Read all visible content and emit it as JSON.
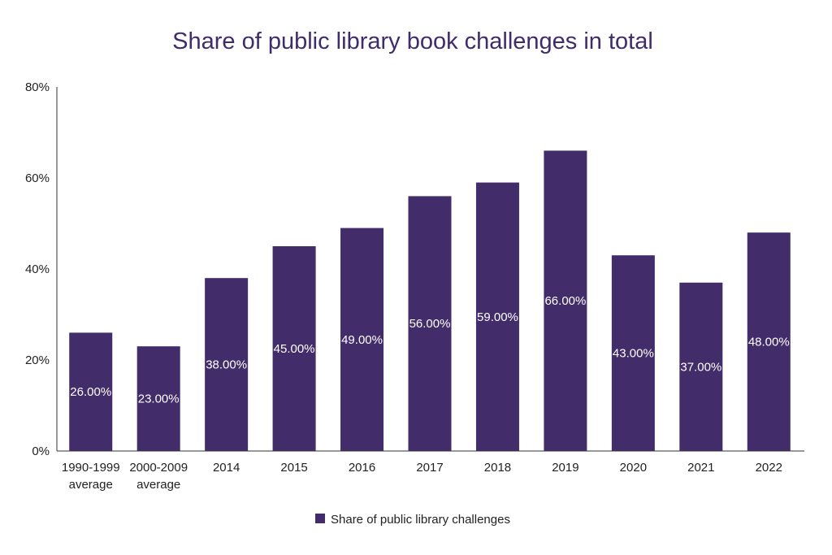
{
  "chart_data": {
    "type": "bar",
    "title": "Share of public library book challenges in total",
    "xlabel": "",
    "ylabel": "",
    "ylim": [
      0,
      80
    ],
    "yticks": [
      "0%",
      "20%",
      "40%",
      "60%",
      "80%"
    ],
    "ytick_values": [
      0,
      20,
      40,
      60,
      80
    ],
    "grid": false,
    "legend_position": "bottom",
    "categories": [
      [
        "1990-1999",
        "average"
      ],
      [
        "2000-2009",
        "average"
      ],
      [
        "2014"
      ],
      [
        "2015"
      ],
      [
        "2016"
      ],
      [
        "2017"
      ],
      [
        "2018"
      ],
      [
        "2019"
      ],
      [
        "2020"
      ],
      [
        "2021"
      ],
      [
        "2022"
      ]
    ],
    "series": [
      {
        "name": "Share of public library challenges",
        "color": "#432c6a",
        "values": [
          26,
          23,
          38,
          45,
          49,
          56,
          59,
          66,
          43,
          37,
          48
        ],
        "labels": [
          "26.00%",
          "23.00%",
          "38.00%",
          "45.00%",
          "49.00%",
          "56.00%",
          "59.00%",
          "66.00%",
          "43.00%",
          "37.00%",
          "48.00%"
        ]
      }
    ]
  }
}
